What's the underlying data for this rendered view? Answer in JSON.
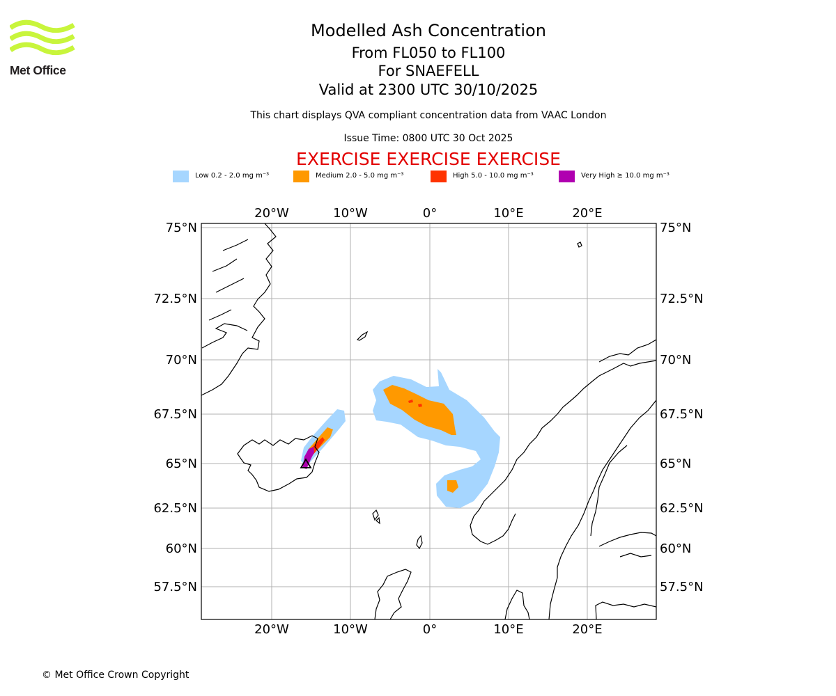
{
  "logo": {
    "text": "Met Office",
    "color": "#c8f53c"
  },
  "header": {
    "title": "Modelled Ash Concentration",
    "levels": "From FL050 to FL100",
    "volcano": "For SNAEFELL",
    "valid": "Valid at 2300 UTC 30/10/2025",
    "qva_note": "This chart displays QVA compliant concentration data from VAAC London",
    "issue_time": "Issue Time: 0800 UTC 30 Oct 2025",
    "exercise": "EXERCISE EXERCISE EXERCISE"
  },
  "legend": [
    {
      "label": "Low 0.2 - 2.0 mg m⁻³",
      "color": "#a6d6ff"
    },
    {
      "label": "Medium 2.0 - 5.0 mg m⁻³",
      "color": "#ff9900"
    },
    {
      "label": "High 5.0 - 10.0 mg m⁻³",
      "color": "#ff3300"
    },
    {
      "label": "Very High  ≥  10.0 mg m⁻³",
      "color": "#b000b0"
    }
  ],
  "map": {
    "lon_ticks": [
      "20°W",
      "10°W",
      "0°",
      "10°E",
      "20°E"
    ],
    "lat_ticks": [
      "75°N",
      "72.5°N",
      "70°N",
      "67.5°N",
      "65°N",
      "62.5°N",
      "60°N",
      "57.5°N"
    ],
    "grid": true,
    "grid_color": "#b0b0b0",
    "coast_color": "#000000"
  },
  "footer": {
    "copyright": "© Met Office Crown Copyright"
  }
}
